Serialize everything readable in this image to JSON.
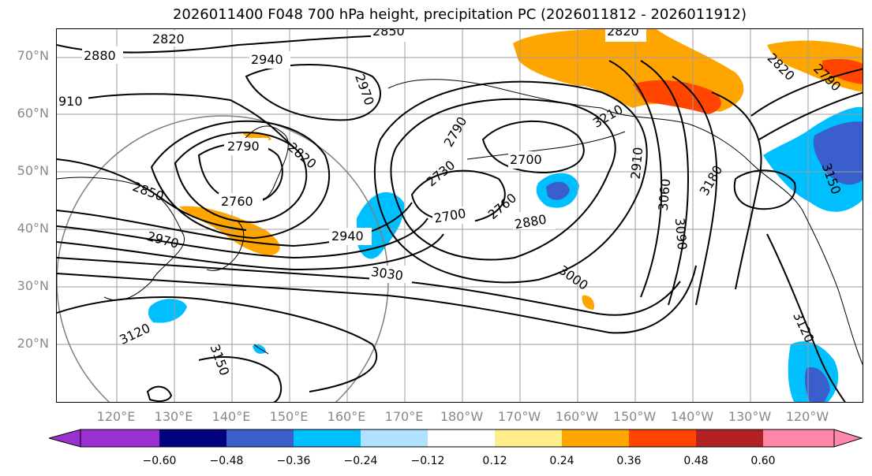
{
  "title": "2026011400 F048 700 hPa height, precipitation PC (2026011812 - 2026011912)",
  "map": {
    "lat_labels": [
      "70°N",
      "60°N",
      "50°N",
      "40°N",
      "30°N",
      "20°N"
    ],
    "lon_labels": [
      "120°E",
      "130°E",
      "140°E",
      "150°E",
      "160°E",
      "170°E",
      "180°W",
      "170°W",
      "160°W",
      "150°W",
      "140°W",
      "130°W",
      "120°W"
    ],
    "contour_labels": [
      "2880",
      "2820",
      "2850",
      "2820",
      "2940",
      "2970",
      "910",
      "2790",
      "2820",
      "2760",
      "2850",
      "2970",
      "2940",
      "3030",
      "3120",
      "3150",
      "2790",
      "2730",
      "2700",
      "2700",
      "2760",
      "2880",
      "3000",
      "2910",
      "3060",
      "3090",
      "3180",
      "3150",
      "3120",
      "3210",
      "2820",
      "2790"
    ]
  },
  "colorbar": {
    "tick_labels": [
      "−0.60",
      "−0.48",
      "−0.36",
      "−0.24",
      "−0.12",
      "0.12",
      "0.24",
      "0.36",
      "0.48",
      "0.60"
    ],
    "colors": [
      "#9b30d0",
      "#000080",
      "#3a5fcd",
      "#00bfff",
      "#b0e2ff",
      "#ffffff",
      "#ffec8b",
      "#ffa500",
      "#ff4500",
      "#b22222",
      "#ff88aa"
    ]
  }
}
